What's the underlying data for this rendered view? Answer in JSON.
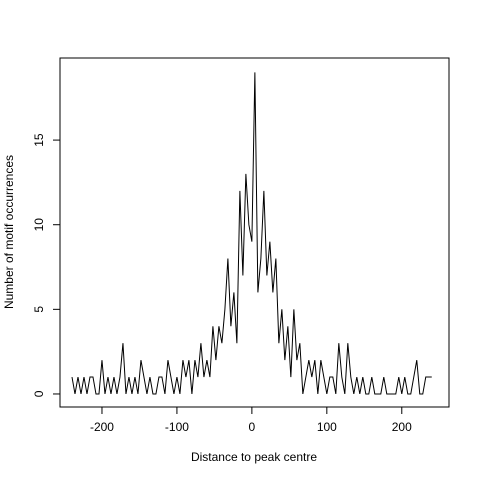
{
  "chart_data": {
    "type": "line",
    "xlabel": "Distance to peak centre",
    "ylabel": "Number of motif occurrences",
    "x": [
      -240,
      -236,
      -232,
      -228,
      -224,
      -220,
      -216,
      -212,
      -208,
      -204,
      -200,
      -196,
      -192,
      -188,
      -184,
      -180,
      -176,
      -172,
      -168,
      -164,
      -160,
      -156,
      -152,
      -148,
      -144,
      -140,
      -136,
      -132,
      -128,
      -124,
      -120,
      -116,
      -112,
      -108,
      -104,
      -100,
      -96,
      -92,
      -88,
      -84,
      -80,
      -76,
      -72,
      -68,
      -64,
      -60,
      -56,
      -52,
      -48,
      -44,
      -40,
      -36,
      -32,
      -28,
      -24,
      -20,
      -16,
      -12,
      -8,
      -4,
      0,
      4,
      8,
      12,
      16,
      20,
      24,
      28,
      32,
      36,
      40,
      44,
      48,
      52,
      56,
      60,
      64,
      68,
      72,
      76,
      80,
      84,
      88,
      92,
      96,
      100,
      104,
      108,
      112,
      116,
      120,
      124,
      128,
      132,
      136,
      140,
      144,
      148,
      152,
      156,
      160,
      164,
      168,
      172,
      176,
      180,
      184,
      188,
      192,
      196,
      200,
      204,
      208,
      212,
      216,
      220,
      224,
      228,
      232,
      236,
      240
    ],
    "series": [
      {
        "color": "#000000",
        "values": [
          1,
          0,
          1,
          0,
          1,
          0,
          1,
          1,
          0,
          0,
          2,
          0,
          1,
          0,
          1,
          0,
          1,
          3,
          0,
          1,
          0,
          1,
          0,
          2,
          1,
          0,
          1,
          0,
          0,
          1,
          1,
          0,
          2,
          1,
          0,
          1,
          0,
          2,
          1,
          2,
          0,
          2,
          1,
          3,
          1,
          2,
          1,
          4,
          2,
          4,
          3,
          5,
          8,
          4,
          6,
          3,
          12,
          7,
          13,
          10,
          9,
          19,
          6,
          8,
          12,
          7,
          9,
          6,
          8,
          3,
          5,
          2,
          4,
          1,
          5,
          2,
          3,
          0,
          1,
          2,
          1,
          2,
          0,
          2,
          1,
          0,
          1,
          1,
          0,
          3,
          1,
          0,
          3,
          1,
          0,
          1,
          0,
          1,
          0,
          0,
          1,
          0,
          0,
          0,
          1,
          0,
          0,
          0,
          0,
          1,
          0,
          1,
          0,
          0,
          1,
          2,
          0,
          0,
          1,
          1,
          1
        ]
      }
    ],
    "xlim": [
      -256,
      263
    ],
    "ylim": [
      -0.77,
      19.85
    ],
    "xticks": [
      -200,
      -100,
      0,
      100,
      200
    ],
    "yticks": [
      0,
      5,
      10,
      15
    ]
  }
}
